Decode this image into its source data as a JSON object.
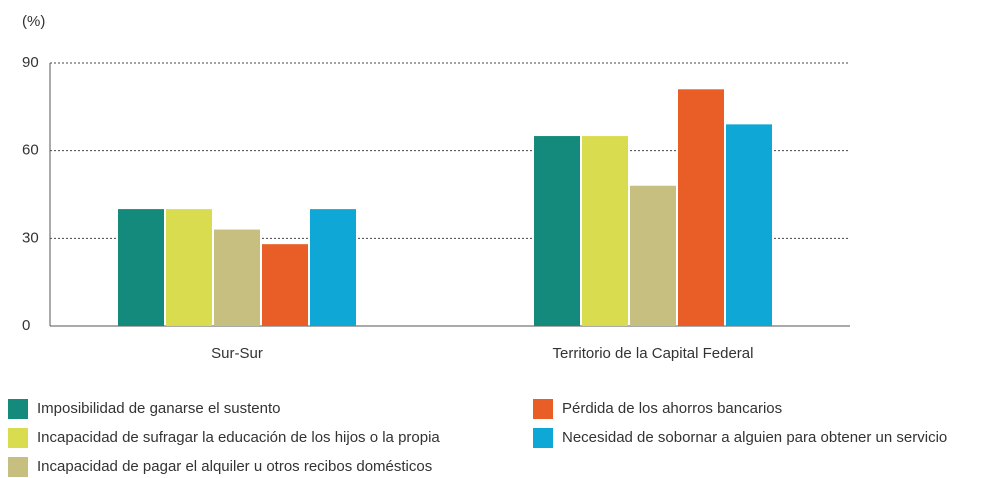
{
  "chart_data": {
    "type": "bar",
    "y_label": "(%)",
    "categories": [
      "Sur-Sur",
      "Territorio de la Capital Federal"
    ],
    "series": [
      {
        "name": "Imposibilidad de ganarse el sustento",
        "color": "#138a7c",
        "values": [
          40,
          65
        ]
      },
      {
        "name": "Incapacidad de sufragar la educación de los hijos o la propia",
        "color": "#d9dc4f",
        "values": [
          40,
          65
        ]
      },
      {
        "name": "Incapacidad de pagar el alquiler u otros recibos domésticos",
        "color": "#c7bf80",
        "values": [
          33,
          48
        ]
      },
      {
        "name": "Pérdida de los ahorros bancarios",
        "color": "#e95d27",
        "values": [
          28,
          81
        ]
      },
      {
        "name": "Necesidad de sobornar a alguien para obtener un servicio",
        "color": "#0fa8d6",
        "values": [
          40,
          69
        ]
      }
    ],
    "ylim": [
      0,
      90
    ],
    "yticks": [
      0,
      30,
      60,
      90
    ],
    "grid": true
  }
}
